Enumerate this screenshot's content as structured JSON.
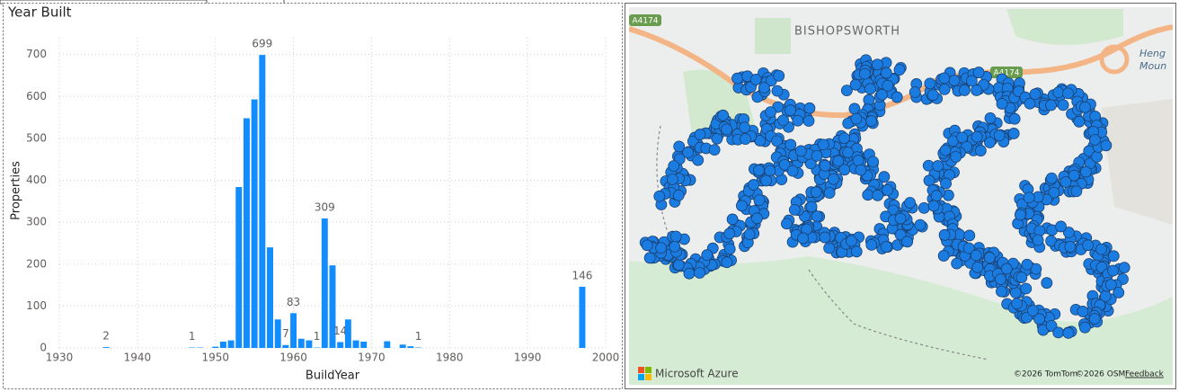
{
  "chart_data": {
    "type": "bar",
    "title": "Year Built",
    "x_label": "BuildYear",
    "y_label": "Properties",
    "x": [
      1936,
      1947,
      1948,
      1950,
      1951,
      1952,
      1953,
      1954,
      1955,
      1956,
      1957,
      1958,
      1959,
      1960,
      1961,
      1962,
      1963,
      1964,
      1965,
      1966,
      1967,
      1968,
      1969,
      1972,
      1974,
      1975,
      1976,
      1997
    ],
    "values": [
      2,
      1,
      1,
      3,
      15,
      18,
      384,
      548,
      593,
      699,
      240,
      68,
      7,
      83,
      22,
      18,
      1,
      309,
      197,
      14,
      68,
      18,
      15,
      16,
      8,
      4,
      1,
      146
    ],
    "value_labels": [
      "2",
      "1",
      null,
      null,
      null,
      null,
      null,
      null,
      null,
      "699",
      null,
      null,
      "7",
      "83",
      null,
      null,
      "1",
      "309",
      null,
      "14",
      null,
      null,
      null,
      null,
      null,
      null,
      "1",
      "146"
    ],
    "color": "#118dff",
    "xlim": [
      1930,
      2000
    ],
    "xticks": [
      1930,
      1940,
      1950,
      1960,
      1970,
      1980,
      1990,
      2000
    ],
    "ylim": [
      0,
      740
    ],
    "yticks": [
      0,
      100,
      200,
      300,
      400,
      500,
      600,
      700
    ],
    "grid": true
  },
  "map": {
    "place": "BISHOPSWORTH",
    "road_labels": [
      "A4174",
      "A4174"
    ],
    "edge_labels": [
      "Heng",
      "Moun"
    ],
    "brand": "Microsoft Azure",
    "attribution": [
      "©2026 TomTom",
      "©2026 OSM"
    ],
    "feedback": "Feedback"
  }
}
